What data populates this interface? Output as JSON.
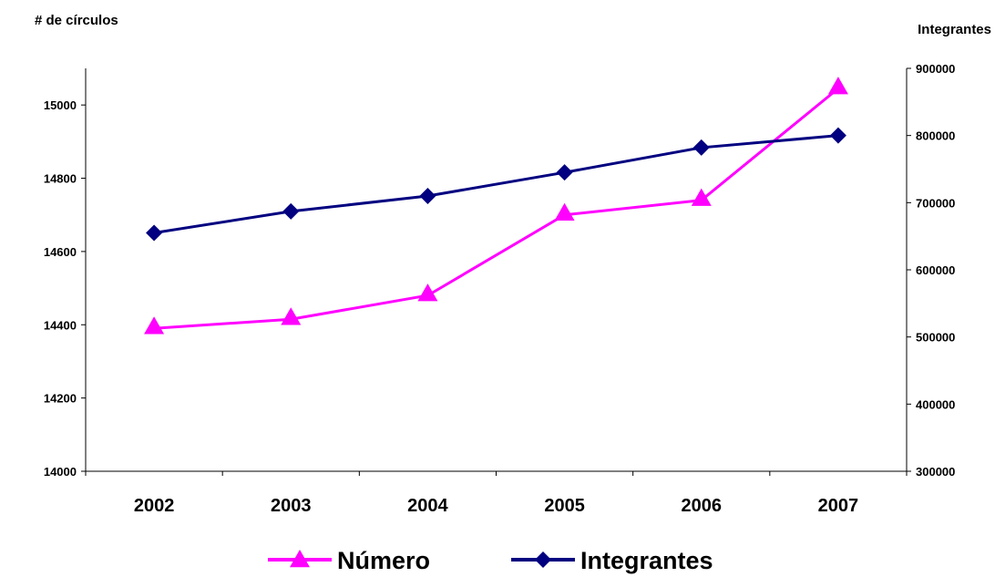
{
  "chart_data": {
    "type": "line",
    "categories": [
      "2002",
      "2003",
      "2004",
      "2005",
      "2006",
      "2007"
    ],
    "y_left": {
      "label": "# de círculos",
      "range": [
        14000,
        15100
      ],
      "ticks": [
        "14000",
        "14200",
        "14400",
        "14600",
        "14800",
        "15000"
      ]
    },
    "y_right": {
      "label": "Integrantes",
      "range": [
        300000,
        900000
      ],
      "ticks": [
        "300000",
        "400000",
        "500000",
        "600000",
        "700000",
        "800000",
        "900000"
      ]
    },
    "series": [
      {
        "name": "Número",
        "axis": "left",
        "color": "#ff00ff",
        "marker": "triangle",
        "values": [
          14390,
          14415,
          14480,
          14700,
          14740,
          15045
        ]
      },
      {
        "name": "Integrantes",
        "axis": "right",
        "color": "#000080",
        "marker": "diamond",
        "values": [
          655000,
          687000,
          710000,
          745000,
          782000,
          800000
        ]
      }
    ],
    "legend": "bottom",
    "grid": false
  }
}
